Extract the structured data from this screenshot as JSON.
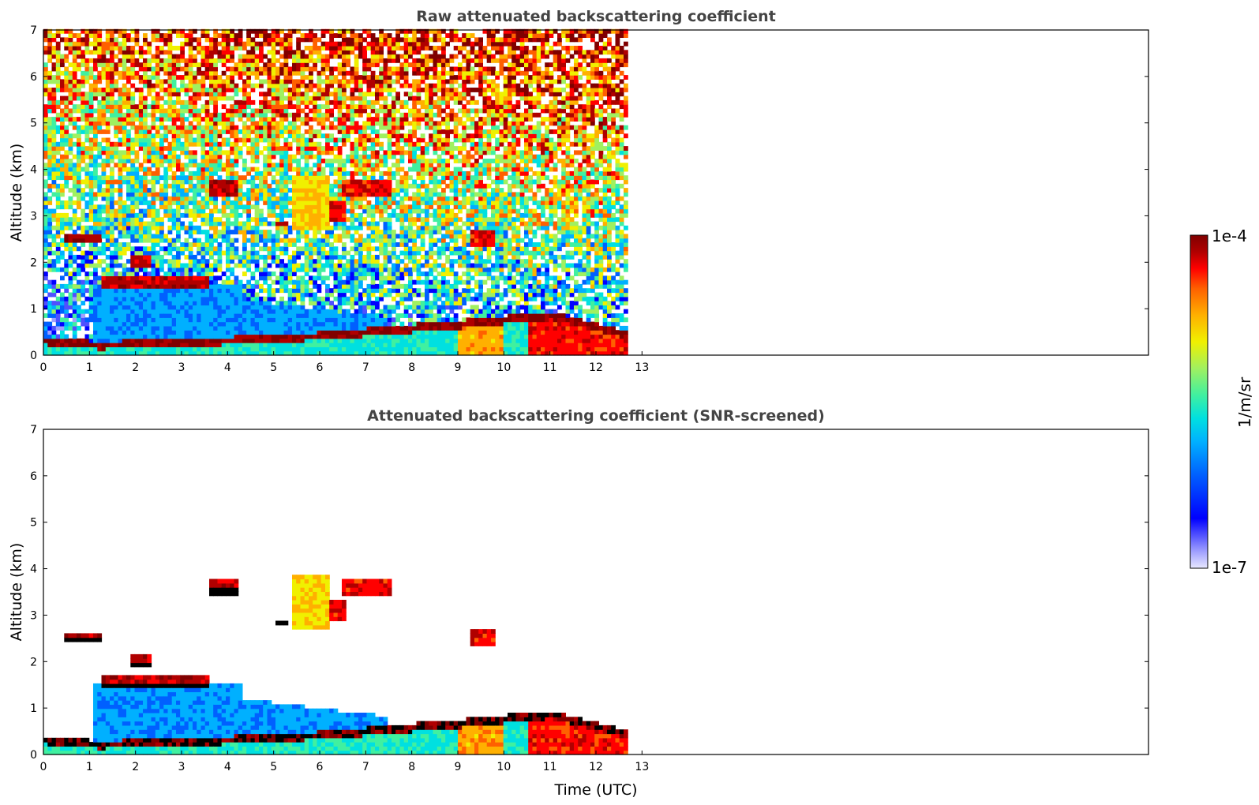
{
  "chart_data": [
    {
      "type": "heatmap",
      "title": "Raw attenuated backscattering coefficient",
      "xlabel": "",
      "ylabel": "Altitude (km)",
      "xlim": [
        0,
        24
      ],
      "ylim": [
        0,
        7
      ],
      "x_ticks": [
        "0",
        "1",
        "2",
        "3",
        "4",
        "5",
        "6",
        "7",
        "8",
        "9",
        "10",
        "11",
        "12",
        "13"
      ],
      "y_ticks": [
        "0",
        "1",
        "2",
        "3",
        "4",
        "5",
        "6",
        "7"
      ],
      "data_end_time": 12.65,
      "layers": [
        {
          "name": "boundary layer",
          "t0": 0,
          "t1": 12.65,
          "top_km": [
            [
              0,
              0.35
            ],
            [
              1.2,
              0.25
            ],
            [
              3,
              0.3
            ],
            [
              6,
              0.45
            ],
            [
              9,
              0.7
            ],
            [
              10,
              0.8
            ],
            [
              11,
              0.9
            ],
            [
              12.6,
              0.5
            ]
          ],
          "level": 0.6
        },
        {
          "name": "cloud 2.5 km",
          "t0": 0.45,
          "t1": 1.3,
          "alt_km": 2.5,
          "level": 0.95
        },
        {
          "name": "cloud 1.6 km",
          "t0": 1.2,
          "t1": 3.6,
          "alt_km": 1.6,
          "level": 0.95
        },
        {
          "name": "cloud 3.6 km",
          "t0": 3.6,
          "t1": 4.2,
          "alt_km": 3.6,
          "level": 0.95
        },
        {
          "name": "mid-level clouds",
          "t0": 4.3,
          "t1": 9.8,
          "alt_km": [
            2.6,
            4.0
          ],
          "level": 0.9
        }
      ]
    },
    {
      "type": "heatmap",
      "title": "Attenuated backscattering coefficient (SNR-screened)",
      "xlabel": "Time (UTC)",
      "ylabel": "Altitude (km)",
      "xlim": [
        0,
        24
      ],
      "ylim": [
        0,
        7
      ],
      "x_ticks": [
        "0",
        "1",
        "2",
        "3",
        "4",
        "5",
        "6",
        "7",
        "8",
        "9",
        "10",
        "11",
        "12",
        "13"
      ],
      "y_ticks": [
        "0",
        "1",
        "2",
        "3",
        "4",
        "5",
        "6",
        "7"
      ],
      "data_end_time": 12.65,
      "screen": "SNR"
    }
  ],
  "colorbar": {
    "label": "1/m/sr",
    "max_label": "1e-4",
    "min_label": "1e-7",
    "colors": [
      "#e8e8ff",
      "#a0a0ff",
      "#5050ff",
      "#0000ff",
      "#0060ff",
      "#00b0ff",
      "#00e0e0",
      "#40f0a0",
      "#a0f060",
      "#f0f000",
      "#ffb000",
      "#ff6000",
      "#ff0000",
      "#b00000",
      "#800000"
    ]
  }
}
